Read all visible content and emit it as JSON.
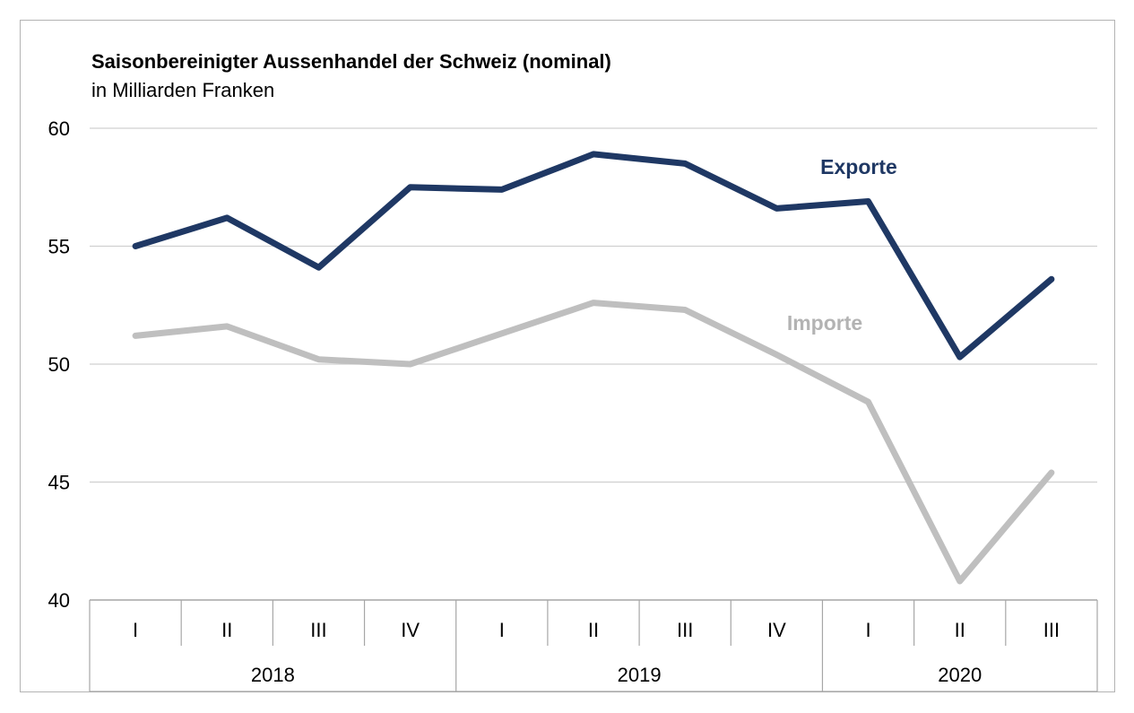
{
  "chart_data": {
    "type": "line",
    "title": "Saisonbereinigter Aussenhandel der Schweiz (nominal)",
    "subtitle": "in Milliarden Franken",
    "xlabel": "",
    "ylabel": "",
    "ylim": [
      40,
      60
    ],
    "yticks": [
      40,
      45,
      50,
      55,
      60
    ],
    "grid": true,
    "categories": [
      "I",
      "II",
      "III",
      "IV",
      "I",
      "II",
      "III",
      "IV",
      "I",
      "II",
      "III"
    ],
    "years": [
      {
        "label": "2018",
        "quarters": 4
      },
      {
        "label": "2019",
        "quarters": 4
      },
      {
        "label": "2020",
        "quarters": 3
      }
    ],
    "series": [
      {
        "name": "Exporte",
        "color": "#1f3864",
        "values": [
          55.0,
          56.2,
          54.1,
          57.5,
          57.4,
          58.9,
          58.5,
          56.6,
          56.9,
          50.3,
          53.6
        ]
      },
      {
        "name": "Importe",
        "color": "#bfbfbf",
        "values": [
          51.2,
          51.6,
          50.2,
          50.0,
          51.3,
          52.6,
          52.3,
          50.4,
          48.4,
          40.8,
          45.4
        ]
      }
    ]
  }
}
